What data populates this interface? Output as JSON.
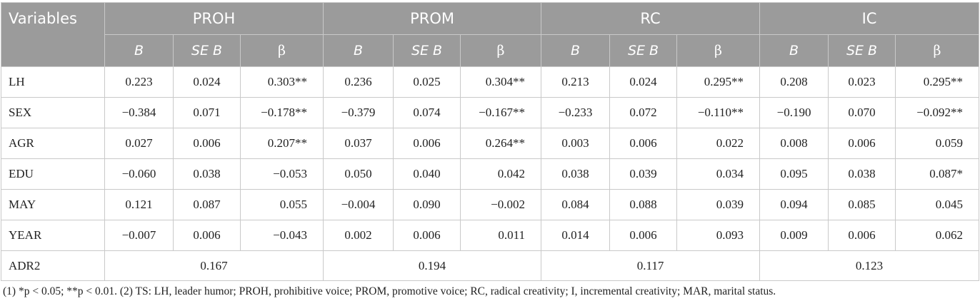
{
  "table": {
    "corner": "Variables",
    "groups": [
      "PROH",
      "PROM",
      "RC",
      "IC"
    ],
    "subheaders": [
      "B",
      "SE B",
      "β"
    ],
    "rows": [
      {
        "label": "LH",
        "cells": [
          "0.223",
          "0.024",
          "0.303**",
          "0.236",
          "0.025",
          "0.304**",
          "0.213",
          "0.024",
          "0.295**",
          "0.208",
          "0.023",
          "0.295**"
        ]
      },
      {
        "label": "SEX",
        "cells": [
          "−0.384",
          "0.071",
          "−0.178**",
          "−0.379",
          "0.074",
          "−0.167**",
          "−0.233",
          "0.072",
          "−0.110**",
          "−0.190",
          "0.070",
          "−0.092**"
        ]
      },
      {
        "label": "AGR",
        "cells": [
          "0.027",
          "0.006",
          "0.207**",
          "0.037",
          "0.006",
          "0.264**",
          "0.003",
          "0.006",
          "0.022",
          "0.008",
          "0.006",
          "0.059"
        ]
      },
      {
        "label": "EDU",
        "cells": [
          "−0.060",
          "0.038",
          "−0.053",
          "0.050",
          "0.040",
          "0.042",
          "0.038",
          "0.039",
          "0.034",
          "0.095",
          "0.038",
          "0.087*"
        ]
      },
      {
        "label": "MAY",
        "cells": [
          "0.121",
          "0.087",
          "0.055",
          "−0.004",
          "0.090",
          "−0.002",
          "0.084",
          "0.088",
          "0.039",
          "0.094",
          "0.085",
          "0.045"
        ]
      },
      {
        "label": "YEAR",
        "cells": [
          "−0.007",
          "0.006",
          "−0.043",
          "0.002",
          "0.006",
          "0.011",
          "0.014",
          "0.006",
          "0.093",
          "0.009",
          "0.006",
          "0.062"
        ]
      }
    ],
    "adr2": {
      "label": "ADR2",
      "values": [
        "0.167",
        "0.194",
        "0.117",
        "0.123"
      ]
    }
  },
  "note": "(1) *p < 0.05; **p < 0.01. (2) TS: LH, leader humor; PROH, prohibitive voice; PROM, promotive voice; RC, radical creativity; I, incremental creativity; MAR, marital status."
}
